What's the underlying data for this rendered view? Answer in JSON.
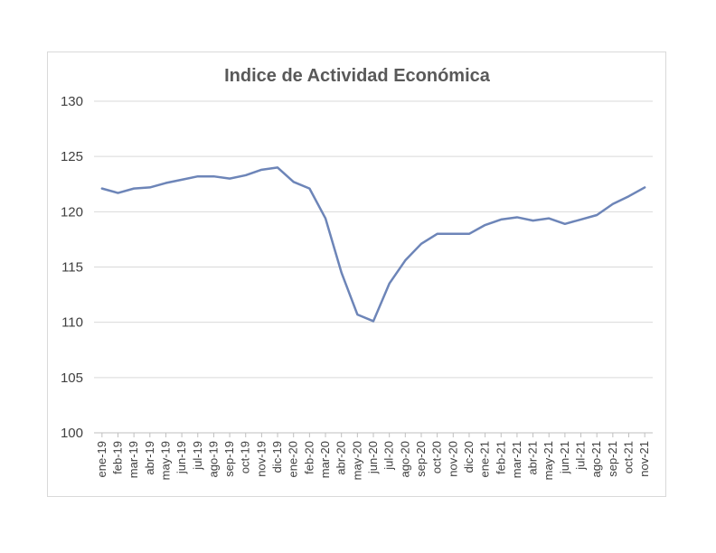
{
  "chart_data": {
    "type": "line",
    "title": "Indice de Actividad Económica",
    "xlabel": "",
    "ylabel": "",
    "ylim": [
      100,
      130
    ],
    "yticks": [
      100,
      105,
      110,
      115,
      120,
      125,
      130
    ],
    "grid": true,
    "legend": "none",
    "categories": [
      "ene-19",
      "feb-19",
      "mar-19",
      "abr-19",
      "may-19",
      "jun-19",
      "jul-19",
      "ago-19",
      "sep-19",
      "oct-19",
      "nov-19",
      "dic-19",
      "ene-20",
      "feb-20",
      "mar-20",
      "abr-20",
      "may-20",
      "jun-20",
      "jul-20",
      "ago-20",
      "sep-20",
      "oct-20",
      "nov-20",
      "dic-20",
      "ene-21",
      "feb-21",
      "mar-21",
      "abr-21",
      "may-21",
      "jun-21",
      "jul-21",
      "ago-21",
      "sep-21",
      "oct-21",
      "nov-21"
    ],
    "series": [
      {
        "color": "#6d85b8",
        "values": [
          122.1,
          121.7,
          122.1,
          122.2,
          122.6,
          122.9,
          123.2,
          123.2,
          123.0,
          123.3,
          123.8,
          124.0,
          122.7,
          122.1,
          119.4,
          114.5,
          110.7,
          110.1,
          113.5,
          115.6,
          117.1,
          118.0,
          118.0,
          118.0,
          118.8,
          119.3,
          119.5,
          119.2,
          119.4,
          118.9,
          119.3,
          119.7,
          120.7,
          121.4,
          122.2
        ]
      }
    ]
  }
}
